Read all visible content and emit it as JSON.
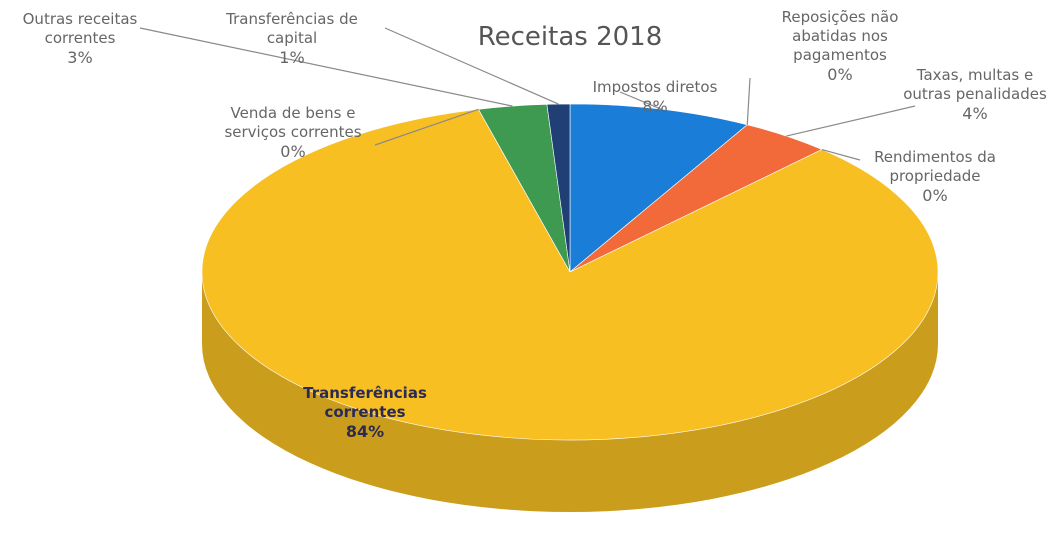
{
  "chart_data": {
    "type": "pie3d",
    "title": "Receitas 2018",
    "categories": [
      "Impostos diretos",
      "Reposições não abatidas nos pagamentos",
      "Taxas, multas e outras penalidades",
      "Rendimentos da propriedade",
      "Transferências correntes",
      "Venda de bens e serviços correntes",
      "Outras receitas correntes",
      "Transferências de capital"
    ],
    "values": [
      8,
      0,
      4,
      0,
      84,
      0,
      3,
      1
    ],
    "value_labels": [
      "8%",
      "0%",
      "4%",
      "0%",
      "84%",
      "0%",
      "3%",
      "1%"
    ],
    "colors": [
      "#1a7ed8",
      "#b9c3cf",
      "#f2693a",
      "#a6a6a6",
      "#f7bf22",
      "#5fb6e6",
      "#3d9a50",
      "#1f3f75"
    ]
  }
}
